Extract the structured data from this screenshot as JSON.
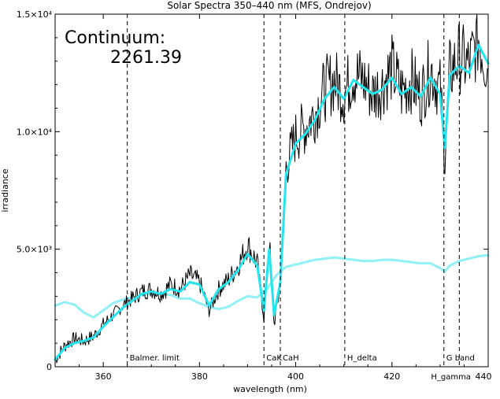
{
  "chart_data": {
    "type": "line",
    "title": "Solar Spectra 350–440 nm (MFS, Ondrejov)",
    "xlabel": "wavelength (nm)",
    "ylabel": "irradiance",
    "xlim": [
      350,
      440
    ],
    "ylim": [
      0,
      15000
    ],
    "x_ticks": [
      360,
      380,
      400,
      420,
      440
    ],
    "x_tick_labels": [
      "360",
      "380",
      "400",
      "420",
      "440"
    ],
    "y_ticks": [
      0,
      5000,
      10000,
      15000
    ],
    "y_tick_labels": [
      "0",
      "5.0×10³",
      "1.0×10⁴",
      "1.5×10⁴"
    ],
    "annotation": {
      "label": "Continuum:",
      "value": "2261.39"
    },
    "colors": {
      "observed": "#000000",
      "smoothed": "#22e5ee",
      "continuum": "#8ff0f5"
    },
    "marker_lines": [
      {
        "x": 365,
        "label": "Balmer. limit"
      },
      {
        "x": 393.4,
        "label": "CaK"
      },
      {
        "x": 396.8,
        "label": "CaH"
      },
      {
        "x": 410.2,
        "label": "H_delta"
      },
      {
        "x": 430.8,
        "label": "G band"
      },
      {
        "x": 434.0,
        "label": "H_gamma"
      }
    ],
    "series": [
      {
        "style": "black_raw",
        "x": [
          350,
          352,
          354,
          356,
          358,
          360,
          362,
          364,
          366,
          368,
          370,
          372,
          374,
          376,
          378,
          380,
          382,
          384,
          386,
          388,
          390,
          392,
          393.4,
          394.5,
          395.5,
          396.8,
          398,
          400,
          402,
          404,
          406,
          408,
          410,
          412,
          414,
          416,
          418,
          420,
          422,
          424,
          426,
          428,
          430,
          431,
          432,
          434,
          436,
          438,
          440
        ],
        "values": [
          300,
          900,
          1200,
          1100,
          1300,
          1800,
          2200,
          2600,
          2900,
          3200,
          3300,
          3100,
          3500,
          3300,
          3900,
          3600,
          2400,
          3300,
          3700,
          4300,
          5200,
          4400,
          2100,
          5400,
          1800,
          3500,
          8500,
          9800,
          10200,
          10800,
          11800,
          12200,
          11600,
          12500,
          12200,
          11600,
          12000,
          12700,
          11700,
          12200,
          11500,
          12700,
          11800,
          9000,
          12500,
          13200,
          12800,
          14000,
          12600
        ]
      },
      {
        "style": "cyan_smooth",
        "x": [
          350,
          352,
          354,
          356,
          358,
          360,
          362,
          364,
          366,
          368,
          370,
          372,
          374,
          376,
          378,
          380,
          382,
          384,
          386,
          388,
          390,
          392,
          393.4,
          394.5,
          395.5,
          396.8,
          398,
          400,
          402,
          404,
          406,
          408,
          410,
          412,
          414,
          416,
          418,
          420,
          422,
          424,
          426,
          428,
          430,
          431,
          432,
          434,
          436,
          438,
          440
        ],
        "values": [
          300,
          800,
          1000,
          1100,
          1250,
          1700,
          2100,
          2500,
          2800,
          3100,
          3200,
          3100,
          3300,
          3200,
          3600,
          3500,
          2600,
          3300,
          3600,
          4100,
          4800,
          4300,
          2400,
          5000,
          2200,
          3600,
          8200,
          9500,
          9900,
          10500,
          11400,
          11900,
          11400,
          12200,
          11900,
          11600,
          11800,
          12300,
          11600,
          11900,
          11500,
          12300,
          11600,
          9300,
          12400,
          12800,
          12500,
          13700,
          12900
        ]
      },
      {
        "style": "continuum",
        "x": [
          350,
          352,
          354,
          356,
          358,
          360,
          362,
          364,
          366,
          368,
          370,
          372,
          374,
          376,
          378,
          380,
          382,
          384,
          386,
          388,
          390,
          392,
          394,
          396,
          398,
          400,
          402,
          404,
          406,
          408,
          410,
          412,
          414,
          416,
          418,
          420,
          422,
          424,
          426,
          428,
          430,
          431,
          432,
          434,
          436,
          438,
          440
        ],
        "values": [
          2600,
          2750,
          2650,
          2300,
          2100,
          2400,
          2700,
          2850,
          2950,
          3050,
          3100,
          3100,
          3050,
          2900,
          2900,
          2700,
          2550,
          2450,
          2550,
          2800,
          3000,
          2950,
          3300,
          3900,
          4250,
          4350,
          4450,
          4550,
          4600,
          4650,
          4600,
          4550,
          4500,
          4500,
          4550,
          4550,
          4500,
          4450,
          4400,
          4400,
          4200,
          4050,
          4300,
          4500,
          4600,
          4700,
          4750
        ]
      }
    ]
  }
}
